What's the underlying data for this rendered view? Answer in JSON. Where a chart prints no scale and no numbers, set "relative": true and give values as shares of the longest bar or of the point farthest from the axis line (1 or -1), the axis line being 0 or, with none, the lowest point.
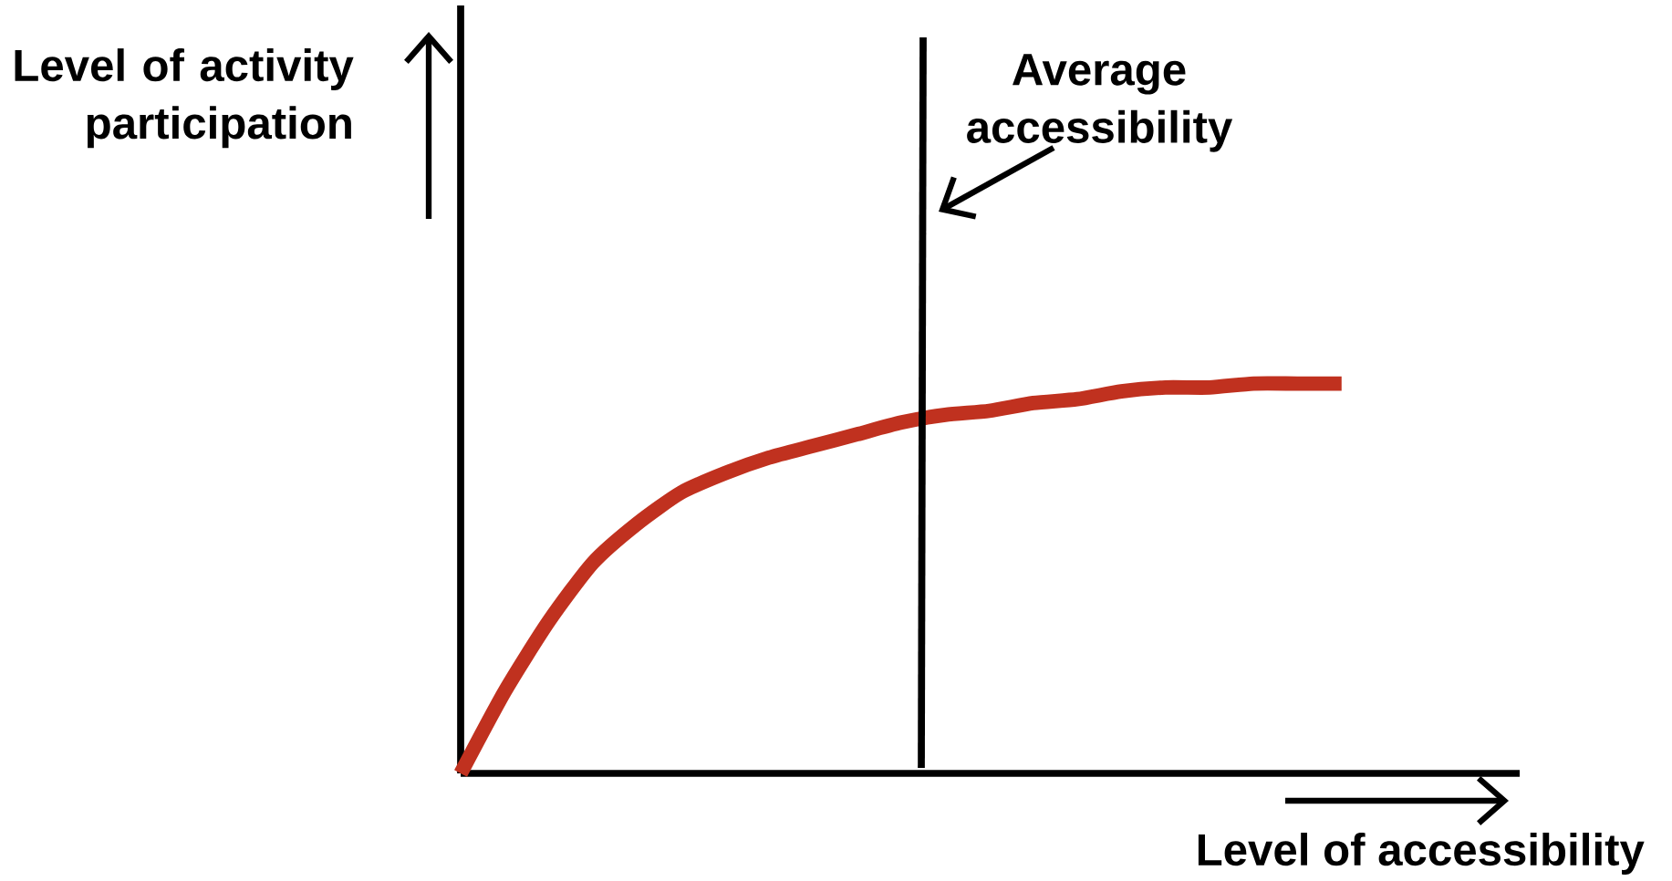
{
  "chart_data": {
    "type": "line",
    "relative": true,
    "xlabel": "Level of accessibility",
    "annotations": [
      "Level of activity participation",
      "Average accessibility"
    ],
    "categories": [
      null,
      null,
      null,
      null,
      null,
      null,
      null,
      null,
      null,
      null,
      null,
      null,
      null,
      null,
      null,
      null,
      null,
      null,
      null,
      null,
      null
    ],
    "series": [
      {
        "color": "#c0311f",
        "values": [
          0,
          0.21,
          0.39,
          0.54,
          0.64,
          0.72,
          0.77,
          0.81,
          0.84,
          0.87,
          0.9,
          0.92,
          0.93,
          0.95,
          0.96,
          0.98,
          0.99,
          0.99,
          1.0,
          1.0,
          1.0
        ]
      }
    ]
  }
}
